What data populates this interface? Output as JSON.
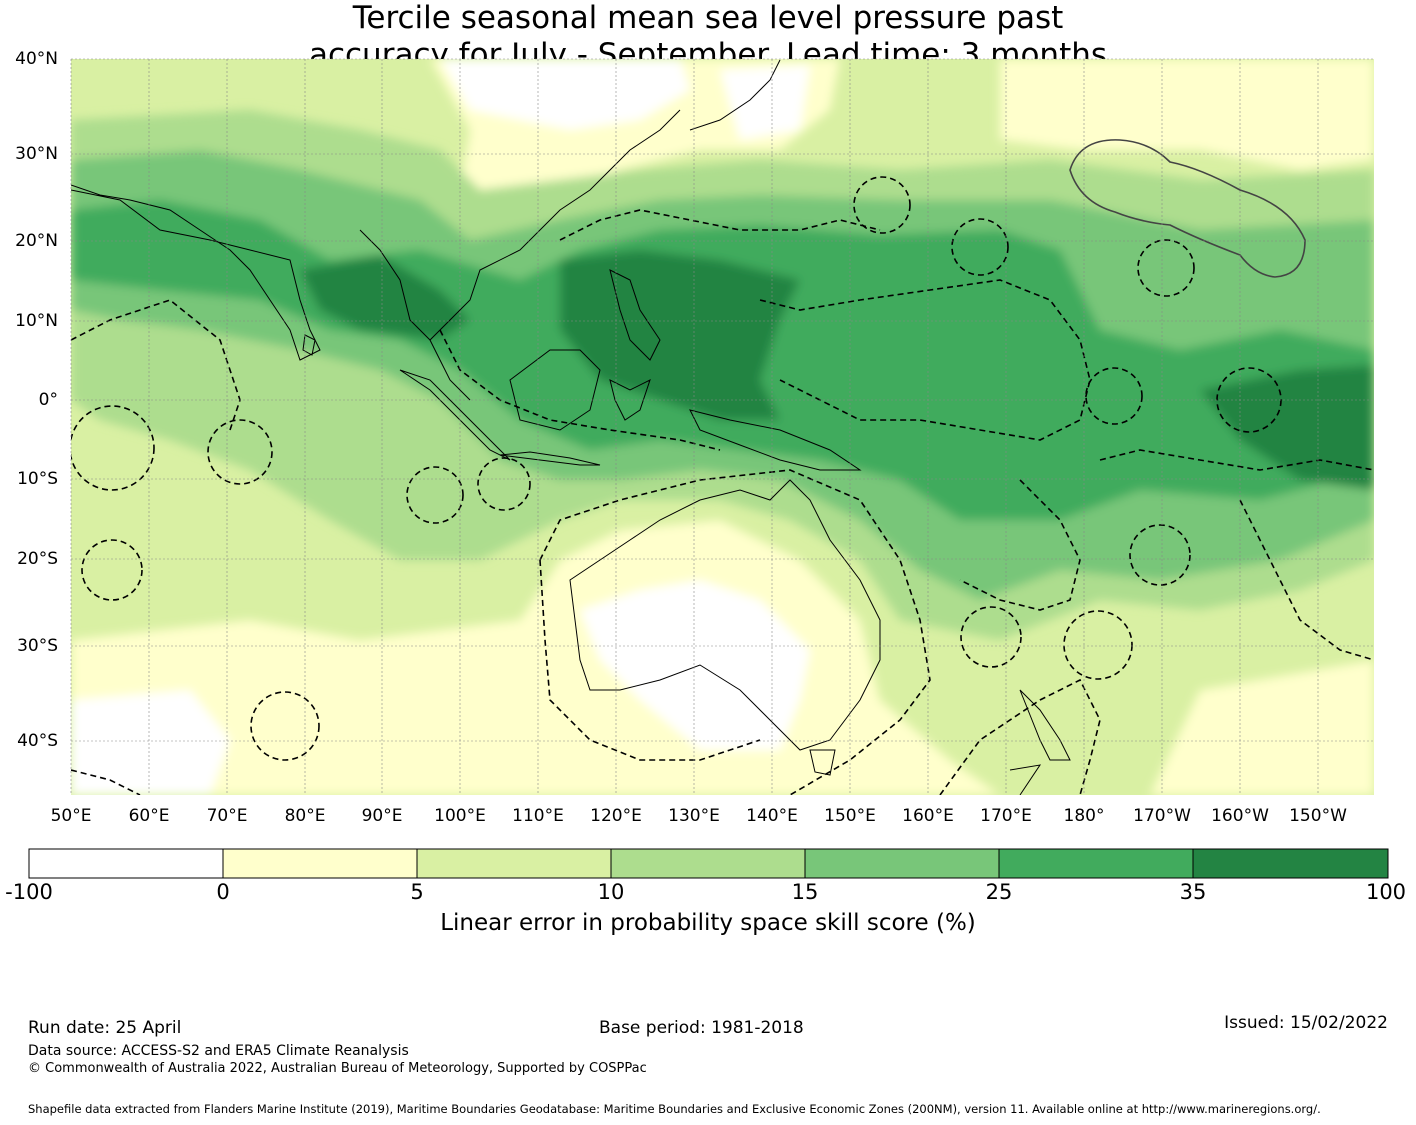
{
  "title": {
    "line1": "Tercile seasonal mean sea level pressure past",
    "line2": "accuracy for July - September. Lead time: 3 months"
  },
  "map": {
    "lat_ticks": [
      "40°N",
      "30°N",
      "20°N",
      "10°N",
      "0°",
      "10°S",
      "20°S",
      "30°S",
      "40°S"
    ],
    "lon_ticks": [
      "50°E",
      "60°E",
      "70°E",
      "80°E",
      "90°E",
      "100°E",
      "110°E",
      "120°E",
      "130°E",
      "140°E",
      "150°E",
      "160°E",
      "170°E",
      "180°",
      "170°W",
      "160°W",
      "150°W"
    ],
    "lat_range": [
      -46,
      40
    ],
    "lon_range": [
      50,
      218
    ],
    "gridlines": true,
    "eez_boundaries": "dashed",
    "highlighted_region": "Hawaii EEZ (solid outline)"
  },
  "colorbar": {
    "boundaries": [
      "-100",
      "0",
      "5",
      "10",
      "15",
      "25",
      "35",
      "100"
    ],
    "colors": [
      "#ffffff",
      "#ffffcc",
      "#d9f0a3",
      "#addd8e",
      "#78c679",
      "#41ab5d",
      "#238443"
    ],
    "label": "Linear error in probability space skill score (%)"
  },
  "footer": {
    "run_date": "Run date: 25 April",
    "base_period": "Base period: 1981-2018",
    "issued": "Issued: 15/02/2022",
    "data_source": "Data source: ACCESS-S2 and ERA5 Climate Reanalysis",
    "copyright": "© Commonwealth of Australia 2022, Australian Bureau of Meteorology, Supported by COSPPac",
    "shapefile": "Shapefile data extracted from Flanders Marine Institute (2019), Maritime Boundaries Geodatabase: Maritime Boundaries and Exclusive Economic Zones (200NM), version 11. Available online at http://www.marineregions.org/."
  }
}
